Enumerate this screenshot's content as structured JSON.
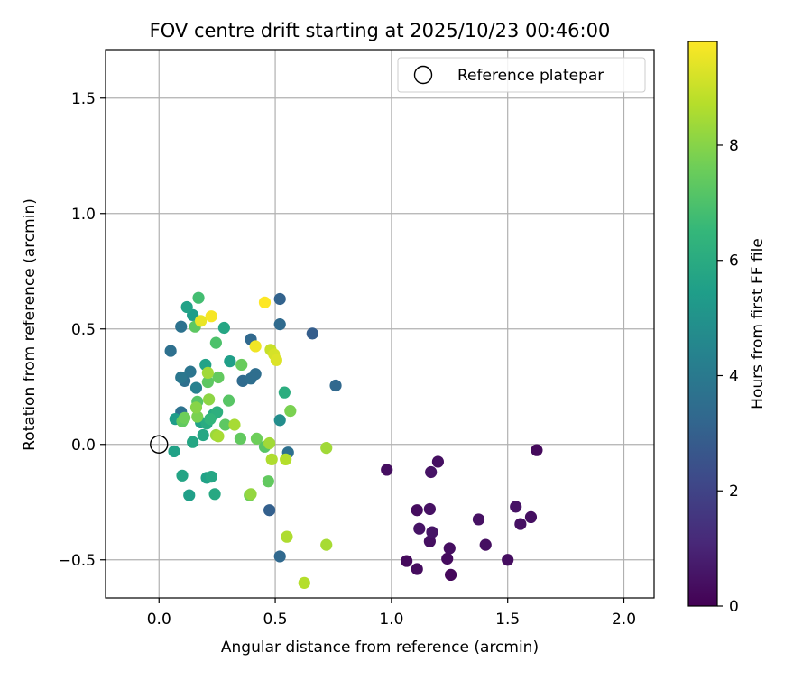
{
  "chart_data": {
    "type": "scatter",
    "title": "FOV centre drift starting at 2025/10/23 00:46:00",
    "xlabel": "Angular distance from reference (arcmin)",
    "ylabel": "Rotation from reference (arcmin)",
    "xlim": [
      -0.23,
      2.13
    ],
    "ylim": [
      -0.665,
      1.71
    ],
    "xticks": [
      0.0,
      0.5,
      1.0,
      1.5,
      2.0
    ],
    "xtick_labels": [
      "0.0",
      "0.5",
      "1.0",
      "1.5",
      "2.0"
    ],
    "yticks": [
      -0.5,
      0.0,
      0.5,
      1.0,
      1.5
    ],
    "ytick_labels": [
      "−0.5",
      "0.0",
      "0.5",
      "1.0",
      "1.5"
    ],
    "grid": true,
    "legend": {
      "position": "upper-right",
      "label": "Reference platepar"
    },
    "reference_point": {
      "x": 0.0,
      "y": 0.0
    },
    "colorbar": {
      "label": "Hours from first FF file",
      "range": [
        0,
        9.8
      ],
      "ticks": [
        0,
        2,
        4,
        6,
        8
      ],
      "tick_labels": [
        "0",
        "2",
        "4",
        "6",
        "8"
      ],
      "colormap": "viridis"
    },
    "colormap_stops": [
      "#440154",
      "#482878",
      "#3e4989",
      "#31688e",
      "#26828e",
      "#1f9e89",
      "#35b779",
      "#6ece58",
      "#b5de2b",
      "#fde725"
    ],
    "points": [
      {
        "x": 1.625,
        "y": -0.025,
        "hours": 0.25
      },
      {
        "x": 0.98,
        "y": -0.11,
        "hours": 0.35
      },
      {
        "x": 1.2,
        "y": -0.075,
        "hours": 0.4
      },
      {
        "x": 1.17,
        "y": -0.12,
        "hours": 0.5
      },
      {
        "x": 1.11,
        "y": -0.285,
        "hours": 0.3
      },
      {
        "x": 1.165,
        "y": -0.28,
        "hours": 0.45
      },
      {
        "x": 1.12,
        "y": -0.365,
        "hours": 0.5
      },
      {
        "x": 1.175,
        "y": -0.38,
        "hours": 0.55
      },
      {
        "x": 1.165,
        "y": -0.42,
        "hours": 0.4
      },
      {
        "x": 1.25,
        "y": -0.45,
        "hours": 0.35
      },
      {
        "x": 1.24,
        "y": -0.495,
        "hours": 0.3
      },
      {
        "x": 1.065,
        "y": -0.505,
        "hours": 0.25
      },
      {
        "x": 1.11,
        "y": -0.54,
        "hours": 0.3
      },
      {
        "x": 1.255,
        "y": -0.565,
        "hours": 0.2
      },
      {
        "x": 1.375,
        "y": -0.325,
        "hours": 0.45
      },
      {
        "x": 1.405,
        "y": -0.435,
        "hours": 0.4
      },
      {
        "x": 1.5,
        "y": -0.5,
        "hours": 0.35
      },
      {
        "x": 1.535,
        "y": -0.27,
        "hours": 0.5
      },
      {
        "x": 1.555,
        "y": -0.345,
        "hours": 0.45
      },
      {
        "x": 1.6,
        "y": -0.315,
        "hours": 0.4
      },
      {
        "x": 0.52,
        "y": 0.63,
        "hours": 3.1
      },
      {
        "x": 0.66,
        "y": 0.48,
        "hours": 2.9
      },
      {
        "x": 0.52,
        "y": 0.52,
        "hours": 3.4
      },
      {
        "x": 0.395,
        "y": 0.455,
        "hours": 3.3
      },
      {
        "x": 0.76,
        "y": 0.255,
        "hours": 3.3
      },
      {
        "x": 0.415,
        "y": 0.305,
        "hours": 3.5
      },
      {
        "x": 0.395,
        "y": 0.285,
        "hours": 3.5
      },
      {
        "x": 0.36,
        "y": 0.275,
        "hours": 3.4
      },
      {
        "x": 0.095,
        "y": 0.51,
        "hours": 3.7
      },
      {
        "x": 0.05,
        "y": 0.405,
        "hours": 3.6
      },
      {
        "x": 0.095,
        "y": 0.29,
        "hours": 3.9
      },
      {
        "x": 0.135,
        "y": 0.315,
        "hours": 3.8
      },
      {
        "x": 0.11,
        "y": 0.275,
        "hours": 3.6
      },
      {
        "x": 0.16,
        "y": 0.245,
        "hours": 4.3
      },
      {
        "x": 0.095,
        "y": 0.14,
        "hours": 3.7
      },
      {
        "x": 0.555,
        "y": -0.035,
        "hours": 3.6
      },
      {
        "x": 0.52,
        "y": -0.485,
        "hours": 3.3
      },
      {
        "x": 0.475,
        "y": -0.285,
        "hours": 3.0
      },
      {
        "x": 0.52,
        "y": 0.105,
        "hours": 4.8
      },
      {
        "x": 0.12,
        "y": 0.595,
        "hours": 5.6
      },
      {
        "x": 0.145,
        "y": 0.56,
        "hours": 5.4
      },
      {
        "x": 0.17,
        "y": 0.635,
        "hours": 6.8
      },
      {
        "x": 0.28,
        "y": 0.505,
        "hours": 5.8
      },
      {
        "x": 0.2,
        "y": 0.345,
        "hours": 5.6
      },
      {
        "x": 0.305,
        "y": 0.36,
        "hours": 5.5
      },
      {
        "x": 0.07,
        "y": 0.11,
        "hours": 5.4
      },
      {
        "x": 0.18,
        "y": 0.095,
        "hours": 5.6
      },
      {
        "x": 0.235,
        "y": 0.13,
        "hours": 6.0
      },
      {
        "x": 0.25,
        "y": 0.14,
        "hours": 6.2
      },
      {
        "x": 0.22,
        "y": 0.11,
        "hours": 6.4
      },
      {
        "x": 0.205,
        "y": 0.09,
        "hours": 6.0
      },
      {
        "x": 0.19,
        "y": 0.04,
        "hours": 5.8
      },
      {
        "x": 0.065,
        "y": -0.03,
        "hours": 5.6
      },
      {
        "x": 0.145,
        "y": 0.01,
        "hours": 5.8
      },
      {
        "x": 0.1,
        "y": -0.135,
        "hours": 5.7
      },
      {
        "x": 0.13,
        "y": -0.22,
        "hours": 5.5
      },
      {
        "x": 0.205,
        "y": -0.145,
        "hours": 5.6
      },
      {
        "x": 0.225,
        "y": -0.14,
        "hours": 5.8
      },
      {
        "x": 0.24,
        "y": -0.215,
        "hours": 5.9
      },
      {
        "x": 0.54,
        "y": 0.225,
        "hours": 6.1
      },
      {
        "x": 0.155,
        "y": 0.51,
        "hours": 7.3
      },
      {
        "x": 0.245,
        "y": 0.44,
        "hours": 7.0
      },
      {
        "x": 0.21,
        "y": 0.27,
        "hours": 7.3
      },
      {
        "x": 0.255,
        "y": 0.29,
        "hours": 7.4
      },
      {
        "x": 0.165,
        "y": 0.185,
        "hours": 7.2
      },
      {
        "x": 0.3,
        "y": 0.19,
        "hours": 7.2
      },
      {
        "x": 0.355,
        "y": 0.345,
        "hours": 7.5
      },
      {
        "x": 0.1,
        "y": 0.1,
        "hours": 7.4
      },
      {
        "x": 0.11,
        "y": 0.115,
        "hours": 7.6
      },
      {
        "x": 0.165,
        "y": 0.12,
        "hours": 7.8
      },
      {
        "x": 0.285,
        "y": 0.085,
        "hours": 7.3
      },
      {
        "x": 0.35,
        "y": 0.025,
        "hours": 7.4
      },
      {
        "x": 0.42,
        "y": 0.025,
        "hours": 7.6
      },
      {
        "x": 0.455,
        "y": -0.01,
        "hours": 7.2
      },
      {
        "x": 0.47,
        "y": -0.16,
        "hours": 7.4
      },
      {
        "x": 0.39,
        "y": -0.22,
        "hours": 7.6
      },
      {
        "x": 0.565,
        "y": 0.145,
        "hours": 7.8
      },
      {
        "x": 0.21,
        "y": 0.31,
        "hours": 8.4
      },
      {
        "x": 0.215,
        "y": 0.195,
        "hours": 8.1
      },
      {
        "x": 0.16,
        "y": 0.16,
        "hours": 8.0
      },
      {
        "x": 0.325,
        "y": 0.085,
        "hours": 8.5
      },
      {
        "x": 0.245,
        "y": 0.04,
        "hours": 8.3
      },
      {
        "x": 0.255,
        "y": 0.035,
        "hours": 8.5
      },
      {
        "x": 0.475,
        "y": 0.005,
        "hours": 8.4
      },
      {
        "x": 0.485,
        "y": -0.065,
        "hours": 8.6
      },
      {
        "x": 0.545,
        "y": -0.065,
        "hours": 8.7
      },
      {
        "x": 0.72,
        "y": -0.015,
        "hours": 8.4
      },
      {
        "x": 0.55,
        "y": -0.4,
        "hours": 8.6
      },
      {
        "x": 0.72,
        "y": -0.435,
        "hours": 8.5
      },
      {
        "x": 0.625,
        "y": -0.6,
        "hours": 8.7
      },
      {
        "x": 0.395,
        "y": -0.215,
        "hours": 8.2
      },
      {
        "x": 0.48,
        "y": 0.41,
        "hours": 9.0
      },
      {
        "x": 0.495,
        "y": 0.39,
        "hours": 9.2
      },
      {
        "x": 0.505,
        "y": 0.365,
        "hours": 9.3
      },
      {
        "x": 0.415,
        "y": 0.425,
        "hours": 9.6
      },
      {
        "x": 0.18,
        "y": 0.535,
        "hours": 9.5
      },
      {
        "x": 0.225,
        "y": 0.555,
        "hours": 9.7
      },
      {
        "x": 0.455,
        "y": 0.615,
        "hours": 9.8
      }
    ]
  }
}
